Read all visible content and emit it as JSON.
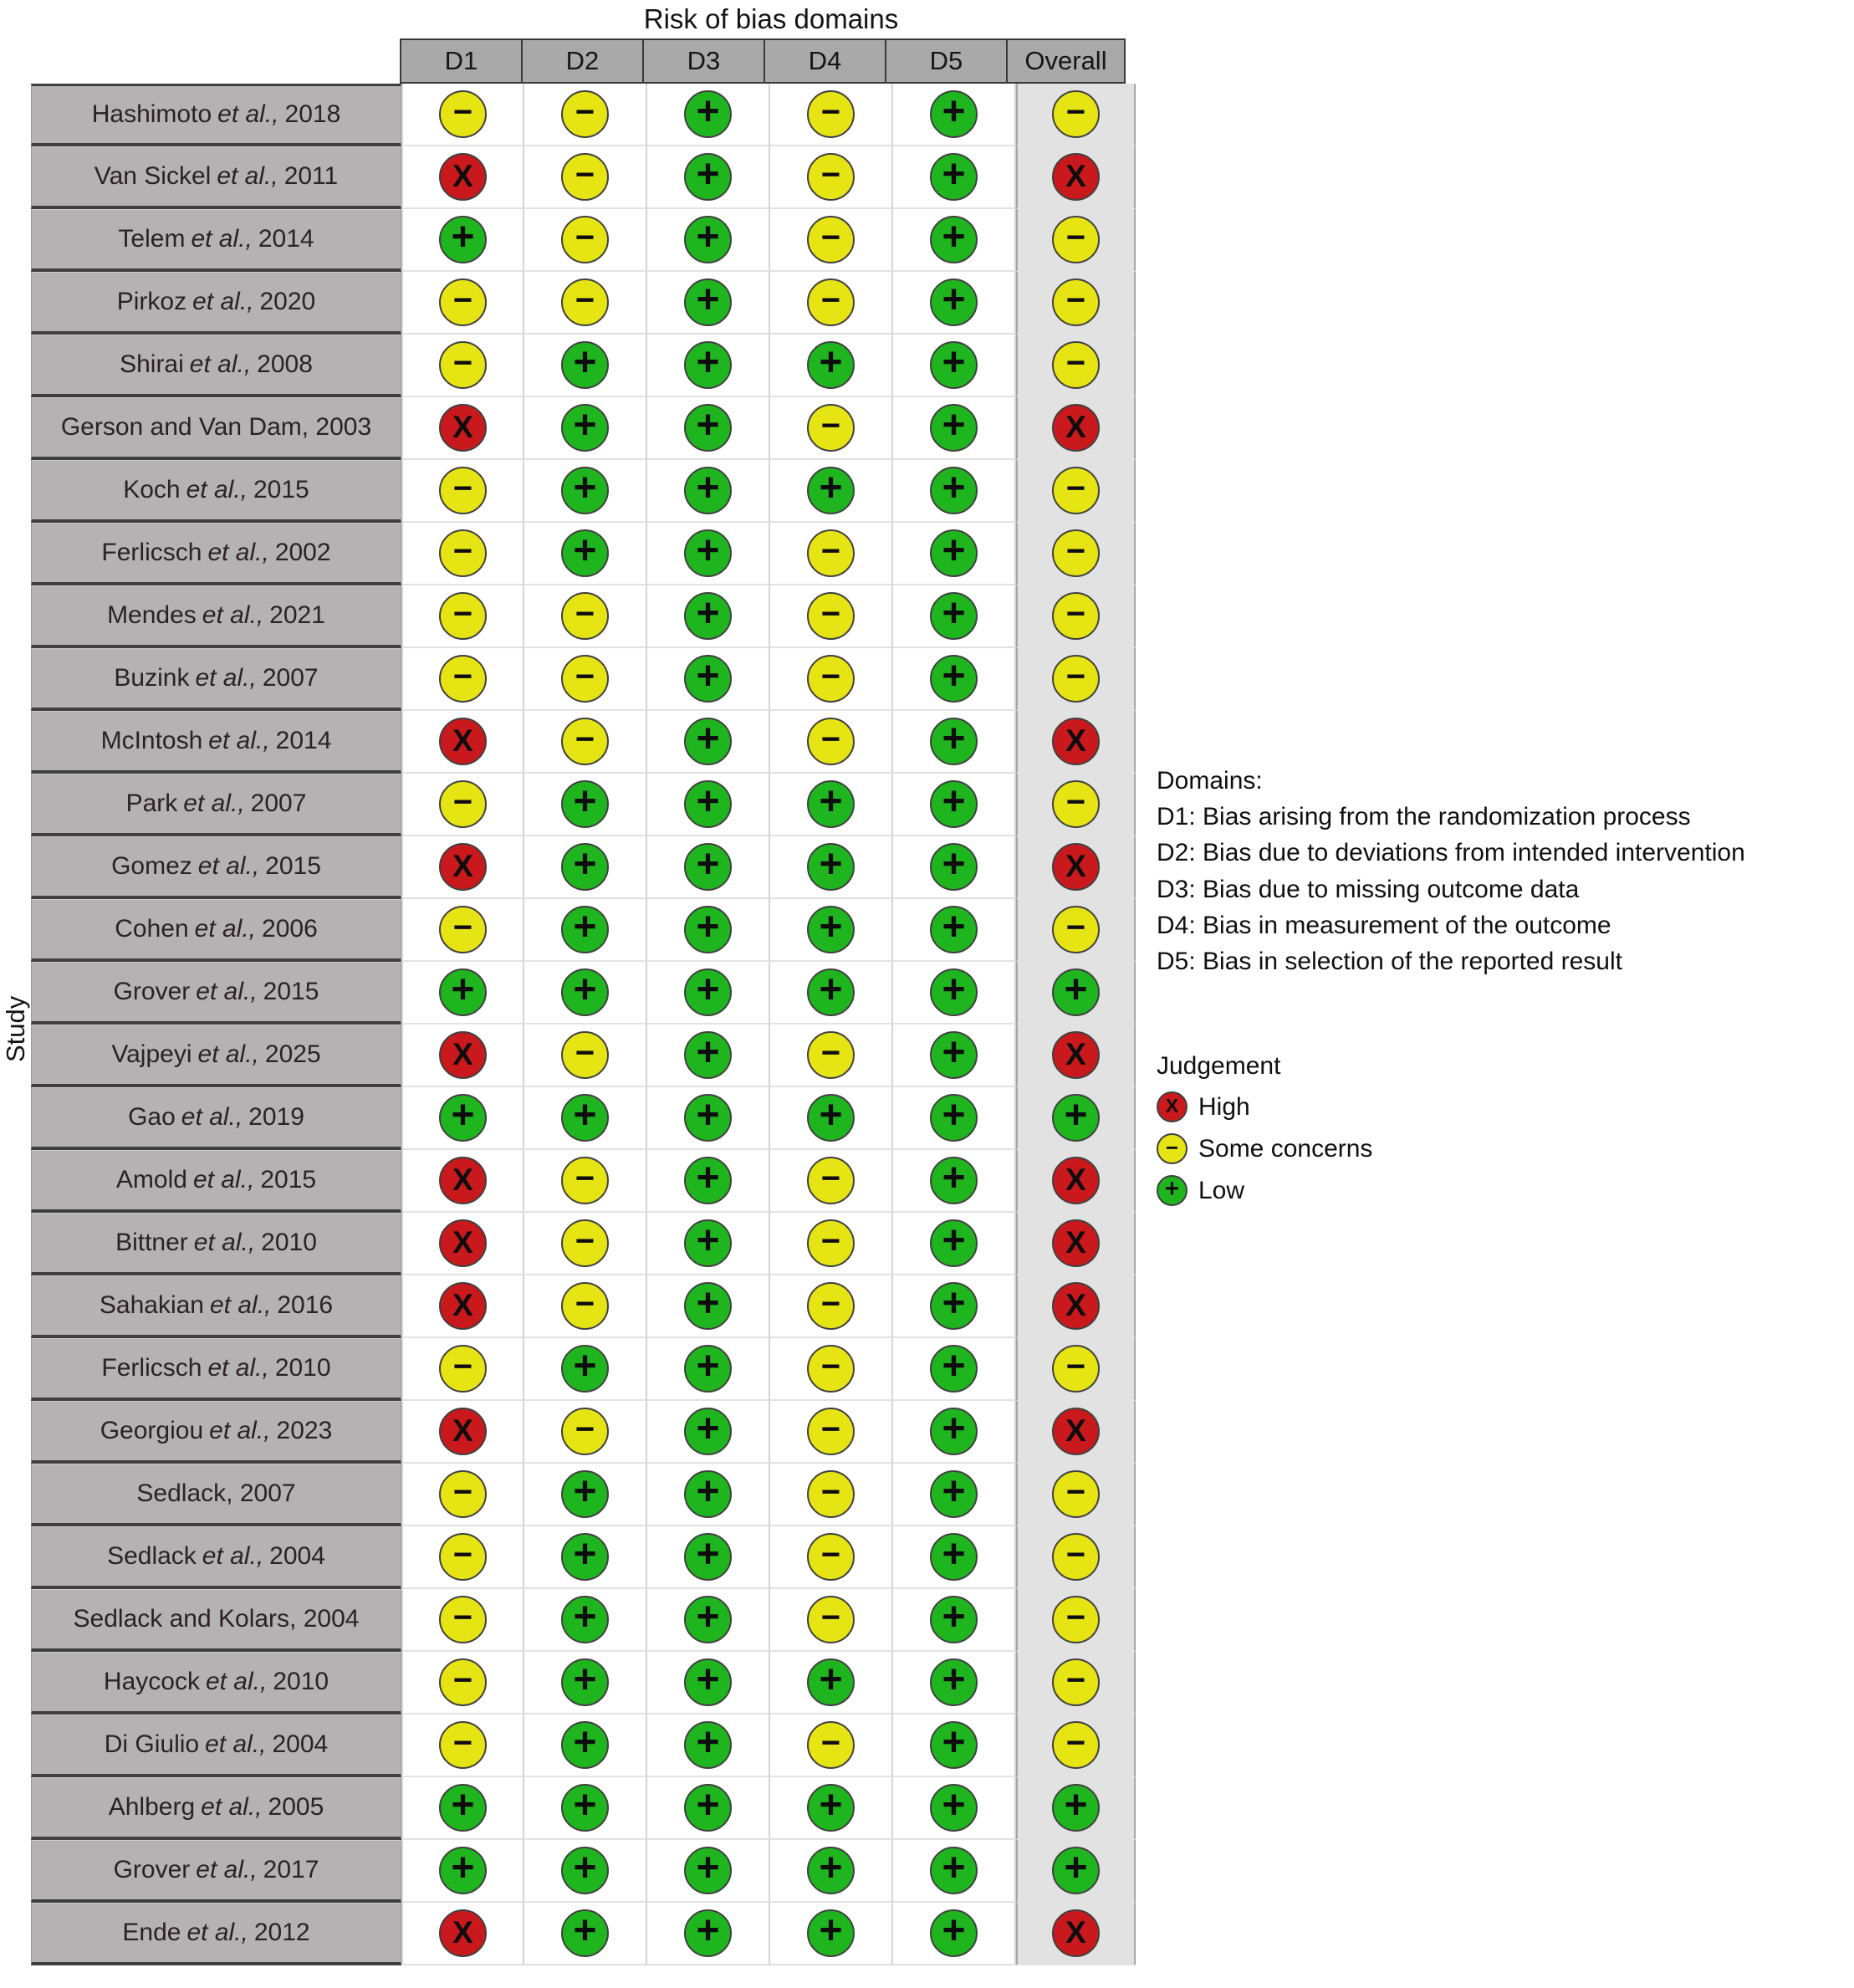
{
  "title": "Risk of bias domains",
  "study_axis_label": "Study",
  "colors": {
    "high": "#c9191c",
    "some_concerns": "#e7e414",
    "low": "#1fb51f"
  },
  "judgement_symbols": {
    "H": "X",
    "S": "−",
    "L": "+"
  },
  "chart_data": {
    "type": "table",
    "title": "Risk of bias domains",
    "columns": [
      "D1",
      "D2",
      "D3",
      "D4",
      "D5",
      "Overall"
    ],
    "code_legend": {
      "H": "High",
      "S": "Some concerns",
      "L": "Low"
    },
    "rows": [
      {
        "study": "Hashimoto et al., 2018",
        "ratings": [
          "S",
          "S",
          "L",
          "S",
          "L",
          "S"
        ]
      },
      {
        "study": "Van Sickel et al., 2011",
        "ratings": [
          "H",
          "S",
          "L",
          "S",
          "L",
          "H"
        ]
      },
      {
        "study": "Telem et al., 2014",
        "ratings": [
          "L",
          "S",
          "L",
          "S",
          "L",
          "S"
        ]
      },
      {
        "study": "Pirkoz et al., 2020",
        "ratings": [
          "S",
          "S",
          "L",
          "S",
          "L",
          "S"
        ]
      },
      {
        "study": "Shirai et al., 2008",
        "ratings": [
          "S",
          "L",
          "L",
          "L",
          "L",
          "S"
        ]
      },
      {
        "study": "Gerson and Van Dam, 2003",
        "ratings": [
          "H",
          "L",
          "L",
          "S",
          "L",
          "H"
        ]
      },
      {
        "study": "Koch et al., 2015",
        "ratings": [
          "S",
          "L",
          "L",
          "L",
          "L",
          "S"
        ]
      },
      {
        "study": "Ferlicsch et al., 2002",
        "ratings": [
          "S",
          "L",
          "L",
          "S",
          "L",
          "S"
        ]
      },
      {
        "study": "Mendes et al., 2021",
        "ratings": [
          "S",
          "S",
          "L",
          "S",
          "L",
          "S"
        ]
      },
      {
        "study": "Buzink et al., 2007",
        "ratings": [
          "S",
          "S",
          "L",
          "S",
          "L",
          "S"
        ]
      },
      {
        "study": "McIntosh et al., 2014",
        "ratings": [
          "H",
          "S",
          "L",
          "S",
          "L",
          "H"
        ]
      },
      {
        "study": "Park et al., 2007",
        "ratings": [
          "S",
          "L",
          "L",
          "L",
          "L",
          "S"
        ]
      },
      {
        "study": "Gomez et al., 2015",
        "ratings": [
          "H",
          "L",
          "L",
          "L",
          "L",
          "H"
        ]
      },
      {
        "study": "Cohen et al., 2006",
        "ratings": [
          "S",
          "L",
          "L",
          "L",
          "L",
          "S"
        ]
      },
      {
        "study": "Grover et al., 2015",
        "ratings": [
          "L",
          "L",
          "L",
          "L",
          "L",
          "L"
        ]
      },
      {
        "study": "Vajpeyi et al., 2025",
        "ratings": [
          "H",
          "S",
          "L",
          "S",
          "L",
          "H"
        ]
      },
      {
        "study": "Gao et al., 2019",
        "ratings": [
          "L",
          "L",
          "L",
          "L",
          "L",
          "L"
        ]
      },
      {
        "study": "Amold et al., 2015",
        "ratings": [
          "H",
          "S",
          "L",
          "S",
          "L",
          "H"
        ]
      },
      {
        "study": "Bittner et al., 2010",
        "ratings": [
          "H",
          "S",
          "L",
          "S",
          "L",
          "H"
        ]
      },
      {
        "study": "Sahakian et al., 2016",
        "ratings": [
          "H",
          "S",
          "L",
          "S",
          "L",
          "H"
        ]
      },
      {
        "study": "Ferlicsch et al., 2010",
        "ratings": [
          "S",
          "L",
          "L",
          "S",
          "L",
          "S"
        ]
      },
      {
        "study": "Georgiou et al., 2023",
        "ratings": [
          "H",
          "S",
          "L",
          "S",
          "L",
          "H"
        ]
      },
      {
        "study": "Sedlack, 2007",
        "ratings": [
          "S",
          "L",
          "L",
          "S",
          "L",
          "S"
        ]
      },
      {
        "study": "Sedlack et al., 2004",
        "ratings": [
          "S",
          "L",
          "L",
          "S",
          "L",
          "S"
        ]
      },
      {
        "study": "Sedlack and Kolars, 2004",
        "ratings": [
          "S",
          "L",
          "L",
          "S",
          "L",
          "S"
        ]
      },
      {
        "study": "Haycock et al., 2010",
        "ratings": [
          "S",
          "L",
          "L",
          "L",
          "L",
          "S"
        ]
      },
      {
        "study": "Di Giulio et al., 2004",
        "ratings": [
          "S",
          "L",
          "L",
          "S",
          "L",
          "S"
        ]
      },
      {
        "study": "Ahlberg et al., 2005",
        "ratings": [
          "L",
          "L",
          "L",
          "L",
          "L",
          "L"
        ]
      },
      {
        "study": "Grover et al., 2017",
        "ratings": [
          "L",
          "L",
          "L",
          "L",
          "L",
          "L"
        ]
      },
      {
        "study": "Ende et al., 2012",
        "ratings": [
          "H",
          "L",
          "L",
          "L",
          "L",
          "H"
        ]
      }
    ]
  },
  "domains_legend": {
    "title": "Domains:",
    "items": [
      "D1: Bias arising from the randomization process",
      "D2: Bias due to deviations from intended intervention",
      "D3: Bias due to missing outcome data",
      "D4: Bias in measurement of the outcome",
      "D5: Bias in selection of the reported result"
    ]
  },
  "judgement_legend": {
    "title": "Judgement",
    "items": [
      {
        "code": "H",
        "label": "High"
      },
      {
        "code": "S",
        "label": "Some concerns"
      },
      {
        "code": "L",
        "label": "Low"
      }
    ]
  }
}
